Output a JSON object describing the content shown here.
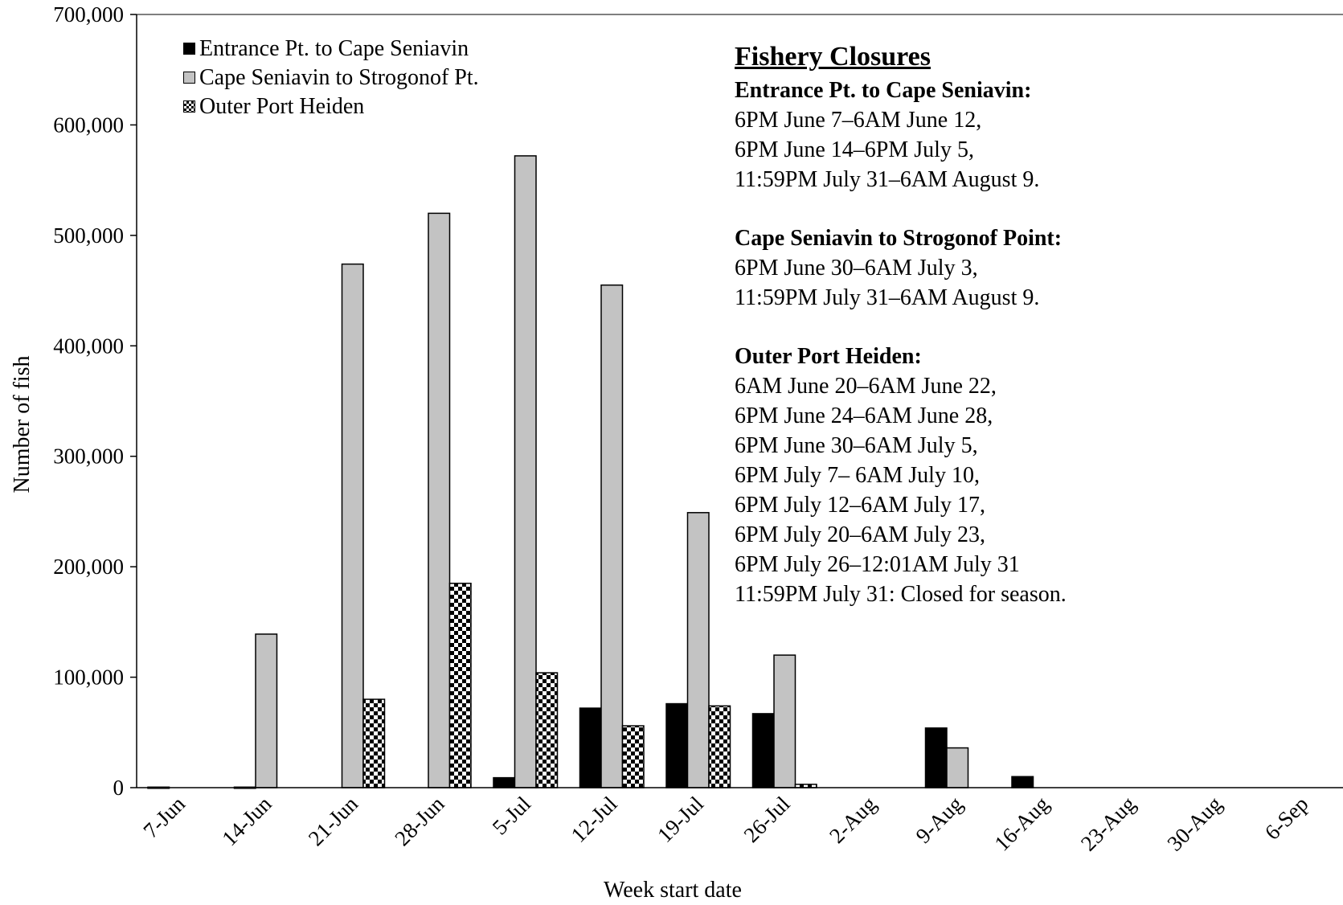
{
  "chart_data": {
    "type": "bar",
    "title": "",
    "xlabel": "Week start date",
    "ylabel": "Number of fish",
    "ylim": [
      0,
      700000
    ],
    "yticks": [
      0,
      100000,
      200000,
      300000,
      400000,
      500000,
      600000,
      700000
    ],
    "ytick_labels": [
      "0",
      "100,000",
      "200,000",
      "300,000",
      "400,000",
      "500,000",
      "600,000",
      "700,000"
    ],
    "categories": [
      "7-Jun",
      "14-Jun",
      "21-Jun",
      "28-Jun",
      "5-Jul",
      "12-Jul",
      "19-Jul",
      "26-Jul",
      "2-Aug",
      "9-Aug",
      "16-Aug",
      "23-Aug",
      "30-Aug",
      "6-Sep"
    ],
    "series": [
      {
        "name": "Entrance Pt. to Cape Seniavin",
        "color": "#000000",
        "pattern": "solid",
        "values": [
          500,
          500,
          0,
          0,
          9000,
          72000,
          76000,
          67000,
          0,
          54000,
          10000,
          0,
          0,
          0
        ]
      },
      {
        "name": "Cape Seniavin to Strogonof Pt.",
        "color": "#c3c3c3",
        "pattern": "solid",
        "values": [
          0,
          139000,
          474000,
          520000,
          572000,
          455000,
          249000,
          120000,
          0,
          36000,
          0,
          0,
          0,
          0
        ]
      },
      {
        "name": "Outer Port Heiden",
        "color": "#000000",
        "pattern": "checkered",
        "values": [
          0,
          0,
          80000,
          185000,
          104000,
          56000,
          74000,
          3000,
          0,
          0,
          0,
          0,
          0,
          0
        ]
      }
    ],
    "legend_position": "top-left",
    "grid": false
  },
  "legend": {
    "items": [
      {
        "label": "Entrance Pt. to Cape Seniavin",
        "swatch": "black"
      },
      {
        "label": "Cape Seniavin to Strogonof Pt.",
        "swatch": "gray"
      },
      {
        "label": "Outer Port Heiden",
        "swatch": "checkered"
      }
    ]
  },
  "closures": {
    "heading": "Fishery Closures",
    "groups": [
      {
        "title": "Entrance Pt. to Cape Seniavin:",
        "lines": [
          "6PM June 7–6AM June 12,",
          "6PM June 14–6PM July 5,",
          "11:59PM July 31–6AM August 9."
        ]
      },
      {
        "title": "Cape Seniavin to Strogonof Point:",
        "lines": [
          "6PM June 30–6AM July 3,",
          "11:59PM July 31–6AM August 9."
        ]
      },
      {
        "title": "Outer Port Heiden:",
        "lines": [
          "6AM June 20–6AM June 22,",
          "6PM June 24–6AM June 28,",
          "6PM June 30–6AM July 5,",
          "6PM July 7– 6AM July 10,",
          "6PM July 12–6AM July 17,",
          "6PM July 20–6AM July 23,",
          "6PM July 26–12:01AM July 31",
          "11:59PM July 31: Closed for season."
        ]
      }
    ]
  }
}
